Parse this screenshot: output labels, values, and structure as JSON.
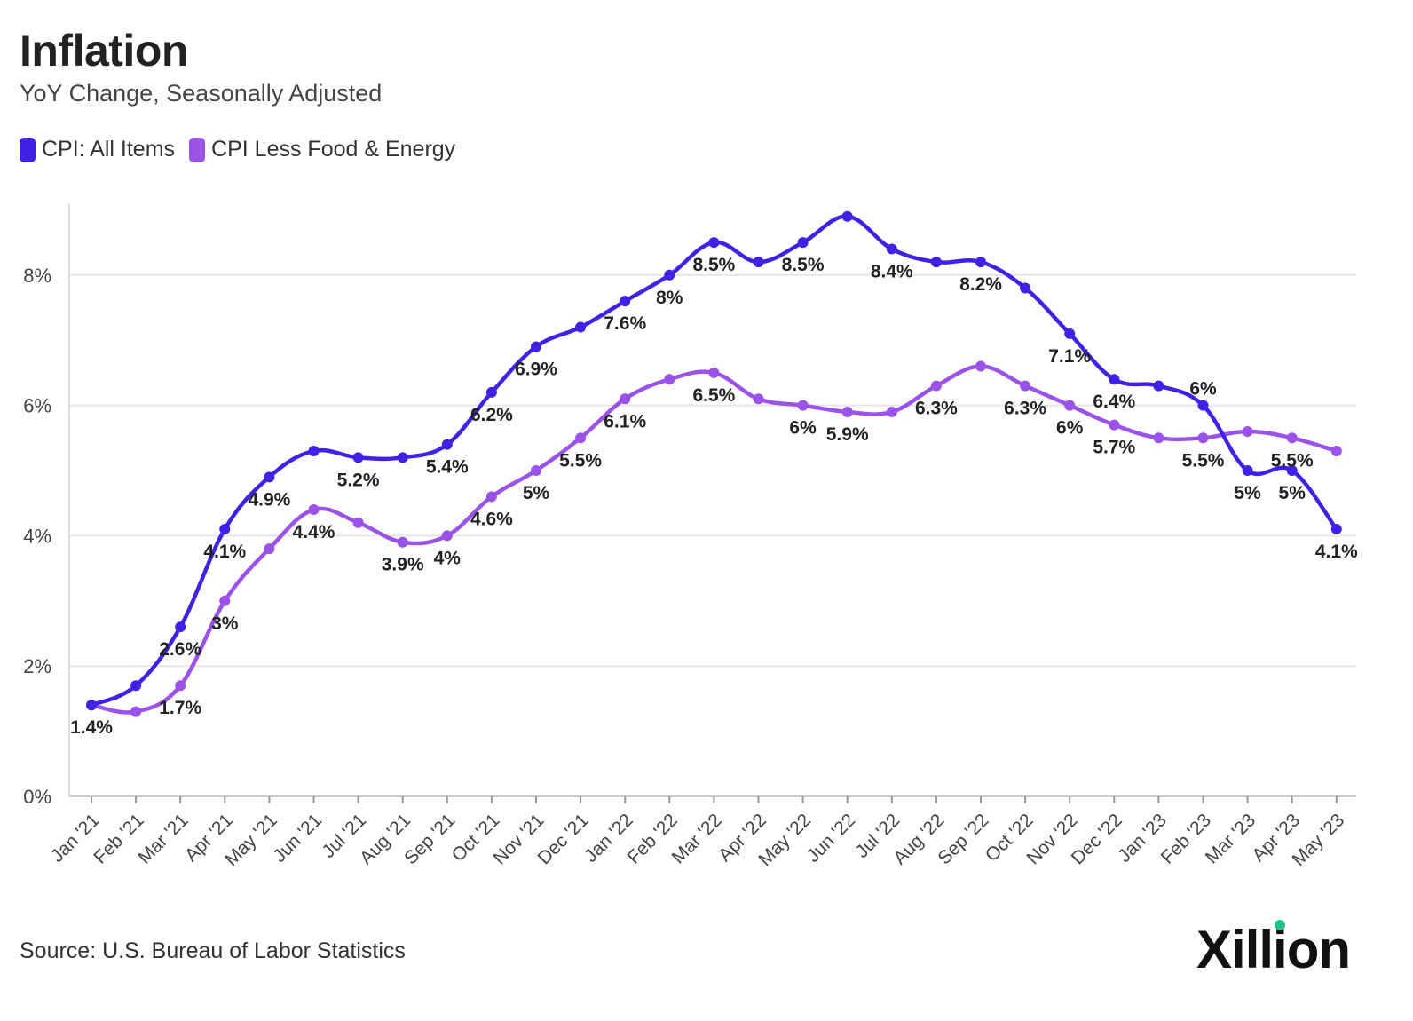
{
  "title": "Inflation",
  "subtitle": "YoY Change, Seasonally Adjusted",
  "source": "Source: U.S. Bureau of Labor Statistics",
  "brand": "Xillion",
  "colors": {
    "cpi_all": "#3f22e6",
    "cpi_core": "#9b52e8",
    "grid": "#e6e6e6",
    "brand_dot": "#1fc28e"
  },
  "chart_data": {
    "type": "line",
    "title": "Inflation",
    "subtitle": "YoY Change, Seasonally Adjusted",
    "x": [
      "Jan '21",
      "Feb '21",
      "Mar '21",
      "Apr '21",
      "May '21",
      "Jun '21",
      "Jul '21",
      "Aug '21",
      "Sep '21",
      "Oct '21",
      "Nov '21",
      "Dec '21",
      "Jan '22",
      "Feb '22",
      "Mar '22",
      "Apr '22",
      "May '22",
      "Jun '22",
      "Jul '22",
      "Aug '22",
      "Sep '22",
      "Oct '22",
      "Nov '22",
      "Dec '22",
      "Jan '23",
      "Feb '23",
      "Mar '23",
      "Apr '23",
      "May '23"
    ],
    "y_ticks": [
      "0%",
      "2%",
      "4%",
      "6%",
      "8%"
    ],
    "y_tick_values": [
      0,
      2,
      4,
      6,
      8
    ],
    "ylim": [
      0,
      9
    ],
    "grid": "horizontal",
    "legend_placement": "top-left",
    "series": [
      {
        "name": "CPI: All Items",
        "values": [
          1.4,
          1.7,
          2.6,
          4.1,
          4.9,
          5.3,
          5.2,
          5.2,
          5.4,
          6.2,
          6.9,
          7.2,
          7.6,
          8.0,
          8.5,
          8.2,
          8.5,
          8.9,
          8.4,
          8.2,
          8.2,
          7.8,
          7.1,
          6.4,
          6.3,
          6.0,
          5.0,
          5.0,
          4.1
        ]
      },
      {
        "name": "CPI Less Food & Energy",
        "values": [
          1.4,
          1.3,
          1.7,
          3.0,
          3.8,
          4.4,
          4.2,
          3.9,
          4.0,
          4.6,
          5.0,
          5.5,
          6.1,
          6.4,
          6.5,
          6.1,
          6.0,
          5.9,
          5.9,
          6.3,
          6.6,
          6.3,
          6.0,
          5.7,
          5.5,
          5.5,
          5.6,
          5.5,
          5.3
        ]
      }
    ],
    "data_labels": [
      {
        "text": "1.4%",
        "index": 0,
        "series": 1,
        "pos": "below"
      },
      {
        "text": "1.7%",
        "index": 2,
        "series": 1,
        "pos": "below"
      },
      {
        "text": "2.6%",
        "index": 2,
        "series": 0,
        "pos": "below"
      },
      {
        "text": "3%",
        "index": 3,
        "series": 1,
        "pos": "below"
      },
      {
        "text": "4.1%",
        "index": 3,
        "series": 0,
        "pos": "below"
      },
      {
        "text": "4.9%",
        "index": 4,
        "series": 0,
        "pos": "below"
      },
      {
        "text": "4.4%",
        "index": 5,
        "series": 1,
        "pos": "below"
      },
      {
        "text": "5.2%",
        "index": 6,
        "series": 0,
        "pos": "below"
      },
      {
        "text": "3.9%",
        "index": 7,
        "series": 1,
        "pos": "below"
      },
      {
        "text": "4%",
        "index": 8,
        "series": 1,
        "pos": "below"
      },
      {
        "text": "5.4%",
        "index": 8,
        "series": 0,
        "pos": "below"
      },
      {
        "text": "4.6%",
        "index": 9,
        "series": 1,
        "pos": "below"
      },
      {
        "text": "6.2%",
        "index": 9,
        "series": 0,
        "pos": "below"
      },
      {
        "text": "5%",
        "index": 10,
        "series": 1,
        "pos": "below"
      },
      {
        "text": "6.9%",
        "index": 10,
        "series": 0,
        "pos": "below"
      },
      {
        "text": "5.5%",
        "index": 11,
        "series": 1,
        "pos": "below"
      },
      {
        "text": "6.1%",
        "index": 12,
        "series": 1,
        "pos": "below"
      },
      {
        "text": "7.6%",
        "index": 12,
        "series": 0,
        "pos": "below"
      },
      {
        "text": "8%",
        "index": 13,
        "series": 0,
        "pos": "below"
      },
      {
        "text": "6.5%",
        "index": 14,
        "series": 1,
        "pos": "below"
      },
      {
        "text": "8.5%",
        "index": 14,
        "series": 0,
        "pos": "below"
      },
      {
        "text": "6%",
        "index": 16,
        "series": 1,
        "pos": "below"
      },
      {
        "text": "8.5%",
        "index": 16,
        "series": 0,
        "pos": "below"
      },
      {
        "text": "5.9%",
        "index": 17,
        "series": 1,
        "pos": "below"
      },
      {
        "text": "8.4%",
        "index": 18,
        "series": 0,
        "pos": "below"
      },
      {
        "text": "6.3%",
        "index": 19,
        "series": 1,
        "pos": "below"
      },
      {
        "text": "8.2%",
        "index": 20,
        "series": 0,
        "pos": "below"
      },
      {
        "text": "6.3%",
        "index": 21,
        "series": 1,
        "pos": "below"
      },
      {
        "text": "7.1%",
        "index": 22,
        "series": 0,
        "pos": "below"
      },
      {
        "text": "6%",
        "index": 22,
        "series": 1,
        "pos": "below"
      },
      {
        "text": "6.4%",
        "index": 23,
        "series": 0,
        "pos": "below"
      },
      {
        "text": "5.7%",
        "index": 23,
        "series": 1,
        "pos": "below"
      },
      {
        "text": "5.5%",
        "index": 25,
        "series": 1,
        "pos": "below"
      },
      {
        "text": "6%",
        "index": 25,
        "series": 0,
        "pos": "above"
      },
      {
        "text": "5%",
        "index": 26,
        "series": 0,
        "pos": "below"
      },
      {
        "text": "5%",
        "index": 27,
        "series": 0,
        "pos": "below"
      },
      {
        "text": "5.5%",
        "index": 27,
        "series": 1,
        "pos": "below"
      },
      {
        "text": "4.1%",
        "index": 28,
        "series": 0,
        "pos": "below"
      }
    ]
  }
}
